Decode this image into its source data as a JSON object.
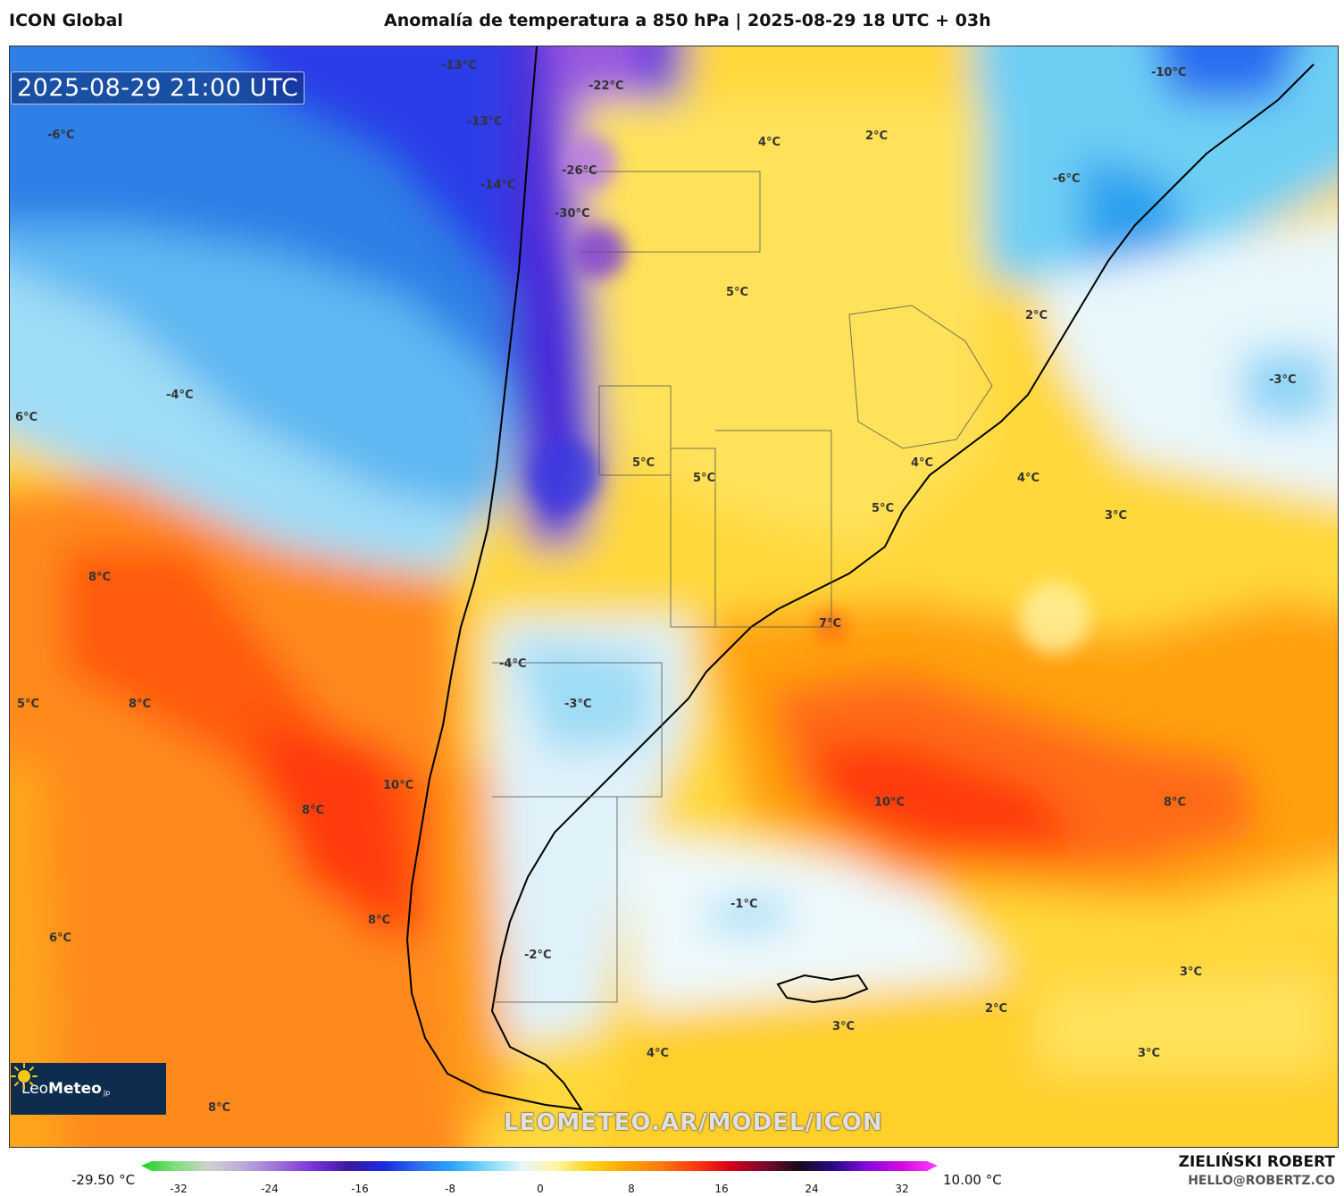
{
  "header": {
    "model": "ICON Global",
    "title": "Anomalía de temperatura a 850 hPa | 2025-08-29 18 UTC + 03h"
  },
  "map": {
    "valid_time": "2025-08-29 21:00 UTC",
    "watermark": "LEOMETEO.AR/MODEL/ICON",
    "logo": {
      "brand_light": "Leo",
      "brand_bold": "Meteo",
      "suffix": "jp"
    },
    "labels": [
      {
        "text": "-13°C"
      },
      {
        "text": "-22°C"
      },
      {
        "text": "-13°C"
      },
      {
        "text": "-6°C"
      },
      {
        "text": "-14°C"
      },
      {
        "text": "-26°C"
      },
      {
        "text": "-30°C"
      },
      {
        "text": "4°C"
      },
      {
        "text": "2°C"
      },
      {
        "text": "-10°C"
      },
      {
        "text": "-6°C"
      },
      {
        "text": "5°C"
      },
      {
        "text": "2°C"
      },
      {
        "text": "-4°C"
      },
      {
        "text": "6°C"
      },
      {
        "text": "-3°C"
      },
      {
        "text": "5°C"
      },
      {
        "text": "5°C"
      },
      {
        "text": "4°C"
      },
      {
        "text": "4°C"
      },
      {
        "text": "5°C"
      },
      {
        "text": "3°C"
      },
      {
        "text": "8°C"
      },
      {
        "text": "7°C"
      },
      {
        "text": "-4°C"
      },
      {
        "text": "5°C"
      },
      {
        "text": "8°C"
      },
      {
        "text": "-3°C"
      },
      {
        "text": "10°C"
      },
      {
        "text": "8°C"
      },
      {
        "text": "10°C"
      },
      {
        "text": "8°C"
      },
      {
        "text": "-1°C"
      },
      {
        "text": "8°C"
      },
      {
        "text": "6°C"
      },
      {
        "text": "-2°C"
      },
      {
        "text": "3°C"
      },
      {
        "text": "2°C"
      },
      {
        "text": "3°C"
      },
      {
        "text": "4°C"
      },
      {
        "text": "3°C"
      },
      {
        "text": "8°C"
      }
    ]
  },
  "colorbar": {
    "min_label": "-29.50 °C",
    "max_label": "10.00 °C",
    "ticks": [
      "-32",
      "-24",
      "-16",
      "-8",
      "0",
      "8",
      "16",
      "24",
      "32"
    ],
    "colors": [
      "#22cc22",
      "#7fe07f",
      "#d0d0d0",
      "#b8a8d8",
      "#9a6fd8",
      "#7a2fd8",
      "#3a1aa0",
      "#1a2ae0",
      "#2a6cf0",
      "#2aa8f8",
      "#7fd8f8",
      "#e6f6fc",
      "#fff7a0",
      "#ffd21a",
      "#ffa500",
      "#ff7a10",
      "#ff3a10",
      "#d4001a",
      "#7a0a2a",
      "#1a0a1a",
      "#2a0a8a",
      "#8a0ae0",
      "#d40ae0",
      "#ff40ff"
    ]
  },
  "credits": {
    "author": "ZIELIŃSKI ROBERT",
    "contact": "HELLO@ROBERTZ.CO"
  }
}
